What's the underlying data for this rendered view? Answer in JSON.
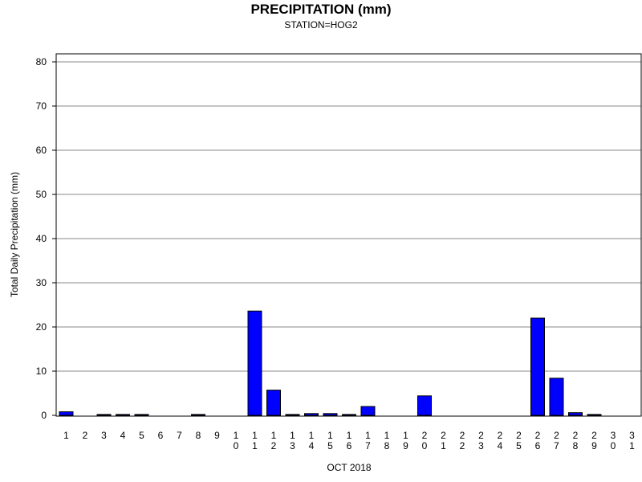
{
  "chart_data": {
    "type": "bar",
    "title": "PRECIPITATION (mm)",
    "subtitle": "STATION=HOG2",
    "xlabel": "OCT 2018",
    "ylabel": "Total Daily Precipitation (mm)",
    "ylim": [
      0,
      80
    ],
    "yticks": [
      0,
      10,
      20,
      30,
      40,
      50,
      60,
      70,
      80
    ],
    "grid": true,
    "bar_color": "#0000ff",
    "categories": [
      "1",
      "2",
      "3",
      "4",
      "5",
      "6",
      "7",
      "8",
      "9",
      "10",
      "11",
      "12",
      "13",
      "14",
      "15",
      "16",
      "17",
      "18",
      "19",
      "20",
      "21",
      "22",
      "23",
      "24",
      "25",
      "26",
      "27",
      "28",
      "29",
      "30",
      "31"
    ],
    "values": [
      0.8,
      0,
      0.2,
      0.2,
      0.2,
      0,
      0,
      0.2,
      0,
      0,
      23.6,
      5.7,
      0.2,
      0.4,
      0.4,
      0.2,
      2.0,
      0,
      0,
      4.4,
      0,
      0,
      0,
      0,
      0,
      22.0,
      8.4,
      0.6,
      0.2,
      0,
      0
    ]
  }
}
